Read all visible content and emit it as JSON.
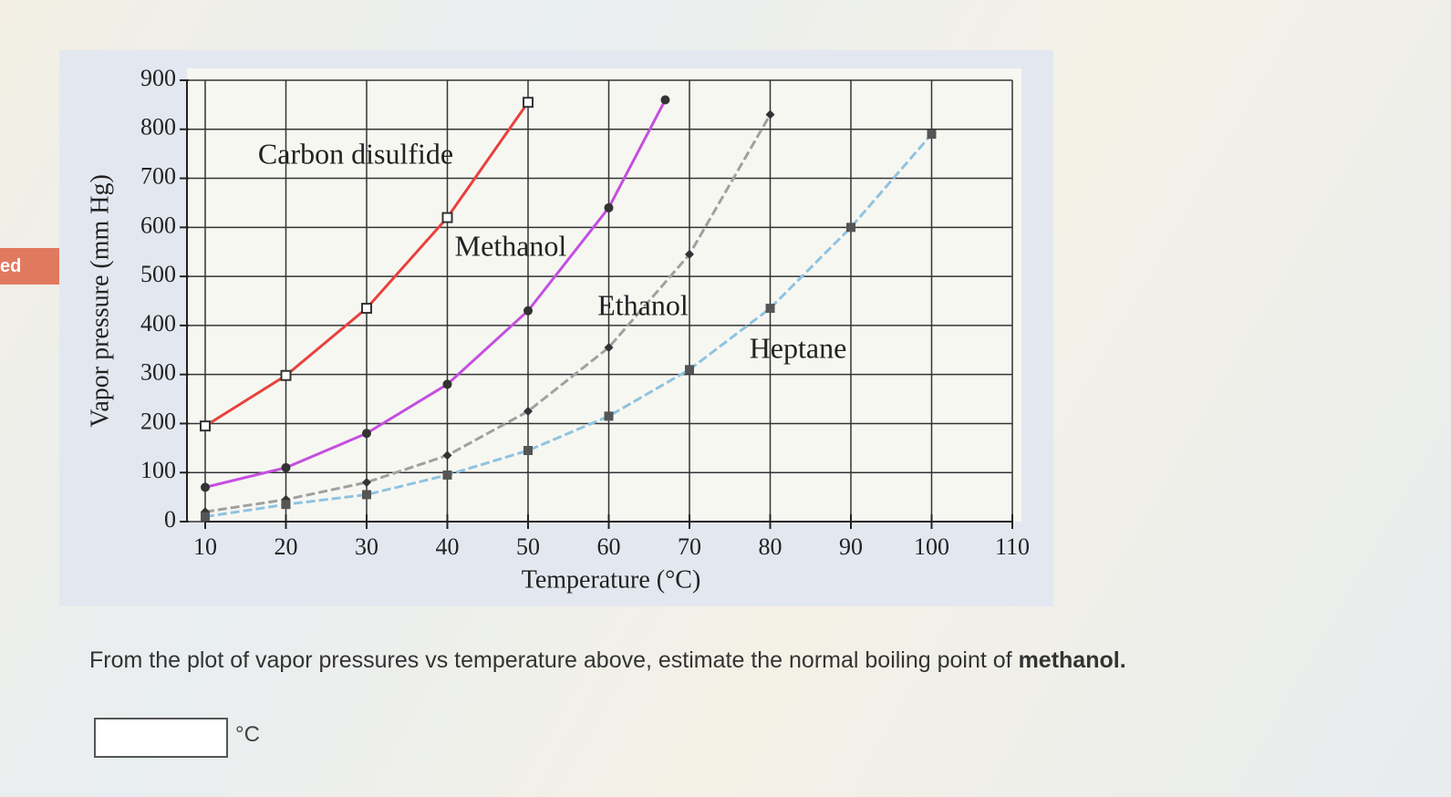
{
  "side_tab": "ed",
  "chart_data": {
    "type": "line",
    "xlabel": "Temperature (°C)",
    "ylabel": "Vapor pressure (mm Hg)",
    "xlim": [
      10,
      110
    ],
    "xticks": [
      10,
      20,
      30,
      40,
      50,
      60,
      70,
      80,
      90,
      100,
      110
    ],
    "ylim": [
      0,
      900
    ],
    "yticks": [
      0,
      100,
      200,
      300,
      400,
      500,
      600,
      700,
      800,
      900
    ],
    "grid": true,
    "series": [
      {
        "name": "Carbon disulfide",
        "color": "#e8413c",
        "marker": "open-square",
        "x": [
          10,
          20,
          30,
          40,
          50
        ],
        "values": [
          195,
          298,
          435,
          620,
          855
        ]
      },
      {
        "name": "Methanol",
        "color": "#c44fe0",
        "marker": "circle",
        "x": [
          10,
          20,
          30,
          40,
          50,
          60,
          67
        ],
        "values": [
          70,
          110,
          180,
          280,
          430,
          640,
          860
        ]
      },
      {
        "name": "Ethanol",
        "color": "#a0a0a0",
        "marker": "diamond",
        "x": [
          10,
          20,
          30,
          40,
          50,
          60,
          70,
          80
        ],
        "values": [
          20,
          45,
          80,
          135,
          225,
          355,
          545,
          830
        ]
      },
      {
        "name": "Heptane",
        "color": "#8fc3e0",
        "marker": "square",
        "x": [
          10,
          20,
          30,
          40,
          50,
          60,
          70,
          80,
          90,
          100
        ],
        "values": [
          10,
          35,
          55,
          95,
          145,
          215,
          310,
          435,
          600,
          790
        ]
      }
    ]
  },
  "question": {
    "text": "From the plot of vapor pressures vs temperature above, estimate the normal boiling point of ",
    "emphasis": "methanol.",
    "unit": "°C"
  }
}
